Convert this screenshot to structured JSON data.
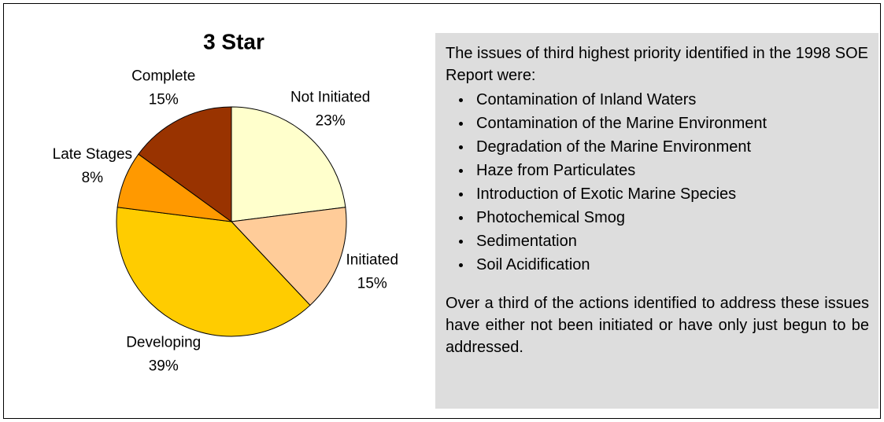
{
  "chart_data": {
    "type": "pie",
    "title": "3 Star",
    "categories": [
      "Not Initiated",
      "Initiated",
      "Developing",
      "Late Stages",
      "Complete"
    ],
    "values": [
      23,
      15,
      39,
      8,
      15
    ],
    "value_labels": [
      "23%",
      "15%",
      "39%",
      "8%",
      "15%"
    ],
    "colors": [
      "#FFFFCC",
      "#FFCC99",
      "#FFCC00",
      "#FF9900",
      "#993300"
    ]
  },
  "text_box": {
    "intro": "The issues of third highest priority identified in the 1998 SOE Report were:",
    "items": [
      "Contamination of Inland Waters",
      "Contamination of the Marine Environment",
      "Degradation of the Marine Environment",
      "Haze from Particulates",
      "Introduction of Exotic Marine Species",
      "Photochemical Smog",
      "Sedimentation",
      "Soil Acidification"
    ],
    "conclusion": "Over a third of the actions identified to address these issues have either not been initiated or have only just begun to be addressed."
  }
}
